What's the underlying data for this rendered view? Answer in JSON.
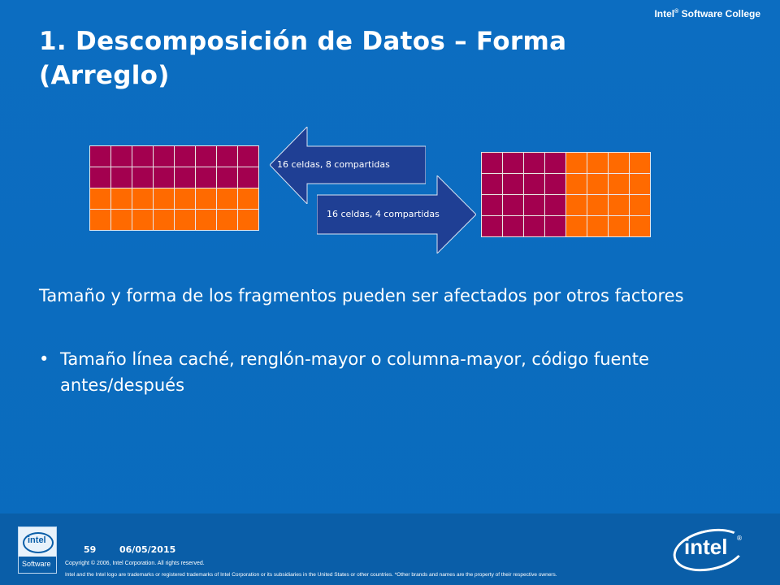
{
  "header": {
    "brand": "Intel",
    "brand_reg": "®",
    "brand_suffix": " Software College",
    "title": "1. Descomposición de Datos – Forma (Arreglo)"
  },
  "diagram": {
    "left_grid": {
      "columns": 8,
      "rows": [
        "crimson",
        "crimson",
        "orange",
        "orange"
      ]
    },
    "right_grid": {
      "columns": 8,
      "row_pattern": [
        "crimson",
        "crimson",
        "crimson",
        "crimson",
        "orange",
        "orange",
        "orange",
        "orange"
      ],
      "rows": 4
    },
    "arrow_left_label": "16 celdas, 8 compartidas",
    "arrow_right_label": "16 celdas, 4 compartidas",
    "colors": {
      "crimson": "#a3004f",
      "orange": "#ff6a00",
      "arrow": "#1f3f94"
    }
  },
  "content": {
    "paragraph": "Tamaño y forma de los fragmentos pueden ser afectados por otros factores",
    "bullet_symbol": "•",
    "bullet": "Tamaño línea caché, renglón-mayor o columna-mayor, código fuente antes/después"
  },
  "footer": {
    "page_number": "59",
    "date": "06/05/2015",
    "copyright": "Copyright © 2006, Intel Corporation. All rights reserved.",
    "legal": "Intel and the Intel logo are trademarks or registered trademarks of Intel Corporation or its subsidiaries in the United States or other countries. *Other brands and names are the property of their respective owners.",
    "software_logo_top": "intel",
    "software_logo_bottom": "Software",
    "intel_logo": "intel",
    "intel_logo_reg": "®"
  }
}
